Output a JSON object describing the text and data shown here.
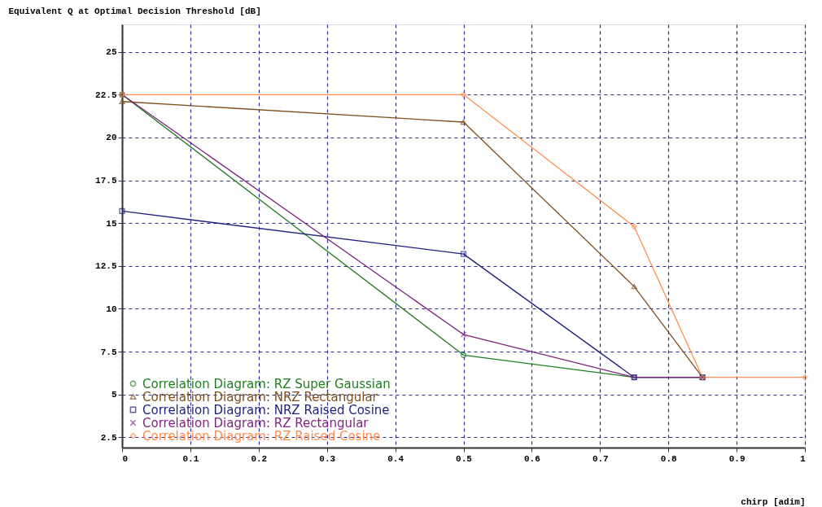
{
  "chart_data": {
    "type": "line",
    "xlabel": "chirp [adim]",
    "ylabel": "Equivalent Q at Optimal Decision Threshold  [dB]",
    "x": [
      0,
      0.5,
      0.75,
      0.85
    ],
    "series": [
      {
        "name": "Correlation Diagram: RZ Super Gaussian",
        "color": "#1f7f1f",
        "marker": "circle",
        "values": [
          22.5,
          7.3,
          6,
          6
        ]
      },
      {
        "name": "Correlation Diagram: NRZ Rectangular",
        "color": "#7f4f1f",
        "marker": "triangle",
        "values": [
          22.1,
          20.9,
          11.3,
          6
        ]
      },
      {
        "name": "Correlation Diagram: NRZ Raised Cosine",
        "color": "#1f1f7f",
        "marker": "square",
        "values": [
          15.7,
          13.2,
          6,
          6
        ]
      },
      {
        "name": "Correlation Diagram: RZ Rectangular",
        "color": "#7f1f7f",
        "marker": "cross",
        "values": [
          22.5,
          8.5,
          6,
          6
        ]
      },
      {
        "name": "Correlation Diagram: RZ Raised Cosine",
        "color": "#ff8c4f",
        "marker": "diamond",
        "x": [
          0,
          0.5,
          0.75,
          0.85,
          1
        ],
        "values": [
          22.5,
          22.5,
          14.8,
          6,
          6
        ]
      }
    ],
    "xlim": [
      0,
      1
    ],
    "xticks": [
      0,
      0.1,
      0.2,
      0.3,
      0.4,
      0.5,
      0.6,
      0.7,
      0.8,
      0.9,
      1
    ],
    "ylim": [
      1.9,
      26.6
    ],
    "yticks": [
      2.5,
      5,
      7.5,
      10,
      12.5,
      15,
      17.5,
      20,
      22.5,
      25
    ],
    "grid": true,
    "legend": "bottom left",
    "line_style": "solid"
  }
}
